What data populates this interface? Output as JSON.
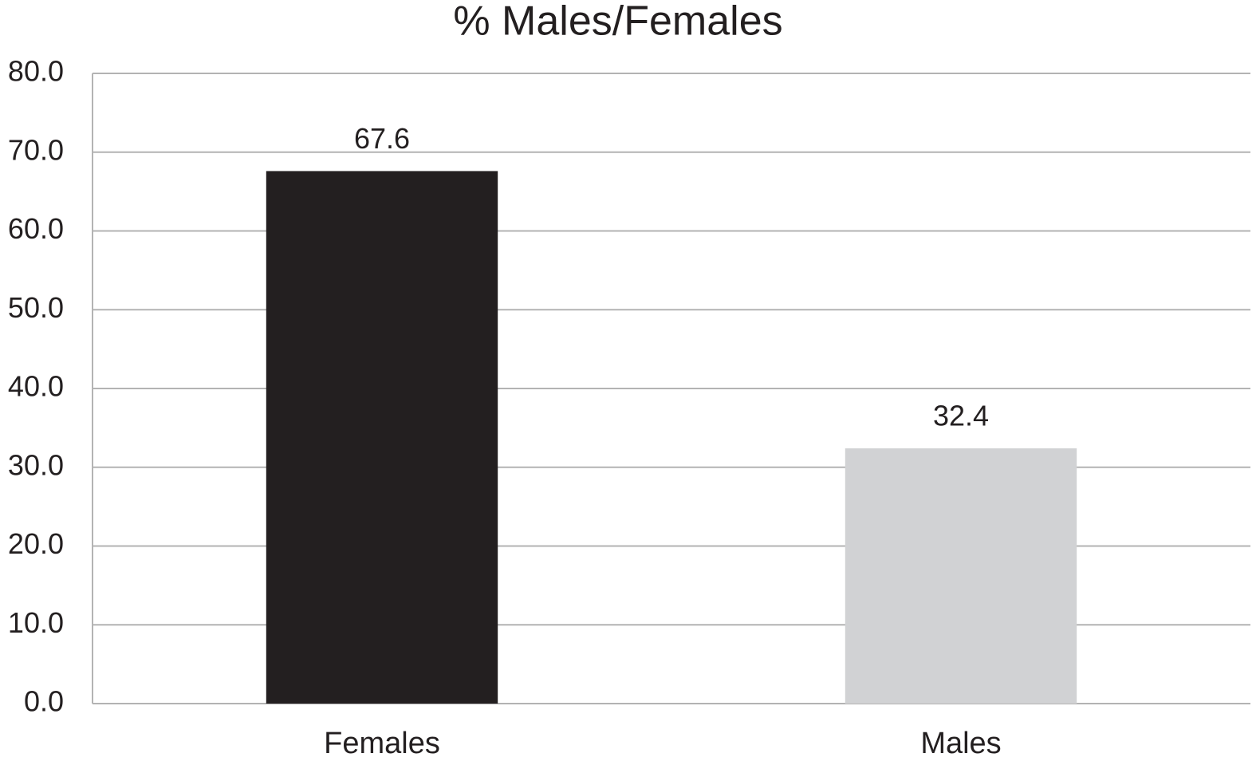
{
  "chart_data": {
    "type": "bar",
    "title": "% Males/Females",
    "categories": [
      "Females",
      "Males"
    ],
    "values": [
      67.6,
      32.4
    ],
    "colors": [
      "#231f20",
      "#d1d2d4"
    ],
    "ylim": [
      0,
      80
    ],
    "yticks": [
      {
        "value": 0,
        "label": "0.0"
      },
      {
        "value": 10,
        "label": "10.0"
      },
      {
        "value": 20,
        "label": "20.0"
      },
      {
        "value": 30,
        "label": "30.0"
      },
      {
        "value": 40,
        "label": "40.0"
      },
      {
        "value": 50,
        "label": "50.0"
      },
      {
        "value": 60,
        "label": "60.0"
      },
      {
        "value": 70,
        "label": "70.0"
      },
      {
        "value": 80,
        "label": "80.0"
      }
    ],
    "grid": true
  }
}
